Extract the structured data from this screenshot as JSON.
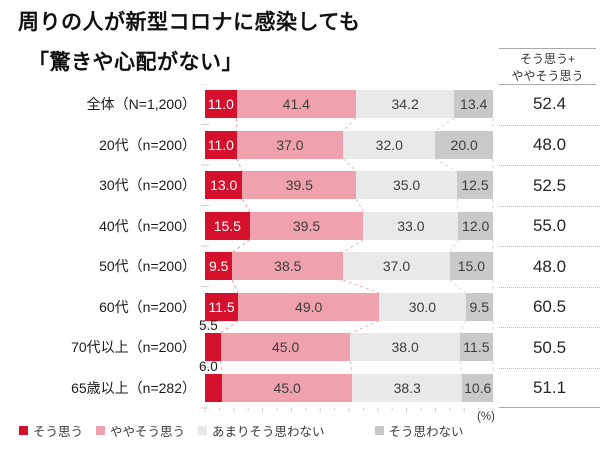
{
  "title": {
    "line1": "周りの人が新型コロナに感染しても",
    "line2": "「驚きや心配がない」"
  },
  "sum_header": {
    "line1": "そう思う+",
    "line2": "ややそう思う"
  },
  "chart_data": {
    "type": "bar",
    "orientation": "horizontal-stacked-100pct",
    "unit": "(%)",
    "xlim": [
      0,
      100
    ],
    "categories": [
      "全体（N=1,200）",
      "20代（n=200）",
      "30代（n=200）",
      "40代（n=200）",
      "50代（n=200）",
      "60代（n=200）",
      "70代以上（n=200）",
      "65歳以上（n=282）"
    ],
    "series": [
      {
        "name": "そう思う",
        "color": "#d5102d",
        "label_color": "#ffffff",
        "values": [
          11.0,
          11.0,
          13.0,
          15.5,
          9.5,
          11.5,
          5.5,
          6.0
        ]
      },
      {
        "name": "ややそう思う",
        "color": "#efa2ad",
        "label_color": "#3d3d3d",
        "values": [
          41.4,
          37.0,
          39.5,
          39.5,
          38.5,
          49.0,
          45.0,
          45.0
        ]
      },
      {
        "name": "あまりそう思わない",
        "color": "#e9e9e9",
        "label_color": "#3d3d3d",
        "values": [
          34.2,
          32.0,
          35.0,
          33.0,
          37.0,
          30.0,
          38.0,
          38.3
        ]
      },
      {
        "name": "そう思わない",
        "color": "#c9c9c9",
        "label_color": "#3d3d3d",
        "values": [
          13.4,
          20.0,
          12.5,
          12.0,
          15.0,
          9.5,
          11.5,
          10.6
        ]
      }
    ],
    "sum_column": {
      "header": "そう思う+ややそう思う",
      "values": [
        52.4,
        48.0,
        52.5,
        55.0,
        48.0,
        60.5,
        50.5,
        51.1
      ]
    },
    "first_label_outside_rows": [
      6,
      7
    ],
    "connector_colors": [
      "#e39aa6",
      "#eab3bb",
      "#d6d6d6",
      "#d0d0d0"
    ],
    "axis_tick_color": "#cfcfcf"
  }
}
